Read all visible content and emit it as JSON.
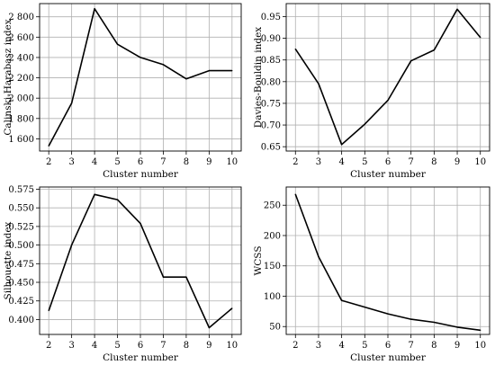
{
  "chart_data": [
    {
      "type": "line",
      "xlabel": "Cluster number",
      "ylabel": "Calinski-Harabasz index",
      "x": [
        2,
        3,
        4,
        5,
        6,
        7,
        8,
        9,
        10
      ],
      "values": [
        1530,
        1950,
        2880,
        2530,
        2400,
        2330,
        2190,
        2270,
        2270
      ],
      "xlim": [
        1.6,
        10.4
      ],
      "ylim": [
        1480,
        2930
      ],
      "yticks": [
        1600,
        1800,
        2000,
        2200,
        2400,
        2600,
        2800
      ],
      "yticklabels": [
        "1 600",
        "1 800",
        "2 000",
        "2 200",
        "2 400",
        "2 600",
        "2 800"
      ],
      "grid": true
    },
    {
      "type": "line",
      "xlabel": "Cluster number",
      "ylabel": "Davies-Bouldin index",
      "x": [
        2,
        3,
        4,
        5,
        6,
        7,
        8,
        9,
        10
      ],
      "values": [
        0.875,
        0.795,
        0.655,
        0.702,
        0.757,
        0.848,
        0.873,
        0.967,
        0.902
      ],
      "xlim": [
        1.6,
        10.4
      ],
      "ylim": [
        0.64,
        0.98
      ],
      "yticks": [
        0.65,
        0.7,
        0.75,
        0.8,
        0.85,
        0.9,
        0.95
      ],
      "yticklabels": [
        "0.65",
        "0.70",
        "0.75",
        "0.80",
        "0.85",
        "0.90",
        "0.95"
      ],
      "grid": true
    },
    {
      "type": "line",
      "xlabel": "Cluster number",
      "ylabel": "Silhouette index",
      "x": [
        2,
        3,
        4,
        5,
        6,
        7,
        8,
        9,
        10
      ],
      "values": [
        0.412,
        0.5,
        0.568,
        0.561,
        0.529,
        0.457,
        0.457,
        0.389,
        0.415
      ],
      "xlim": [
        1.6,
        10.4
      ],
      "ylim": [
        0.38,
        0.578
      ],
      "yticks": [
        0.4,
        0.425,
        0.45,
        0.475,
        0.5,
        0.525,
        0.55,
        0.575
      ],
      "yticklabels": [
        "0.400",
        "0.425",
        "0.450",
        "0.475",
        "0.500",
        "0.525",
        "0.550",
        "0.575"
      ],
      "grid": true
    },
    {
      "type": "line",
      "xlabel": "Cluster number",
      "ylabel": "WCSS",
      "x": [
        2,
        3,
        4,
        5,
        6,
        7,
        8,
        9,
        10
      ],
      "values": [
        268,
        165,
        93,
        82,
        71,
        62,
        57,
        49,
        44
      ],
      "xlim": [
        1.6,
        10.4
      ],
      "ylim": [
        37,
        280
      ],
      "yticks": [
        50,
        100,
        150,
        200,
        250
      ],
      "yticklabels": [
        "50",
        "100",
        "150",
        "200",
        "250"
      ],
      "grid": true
    }
  ]
}
